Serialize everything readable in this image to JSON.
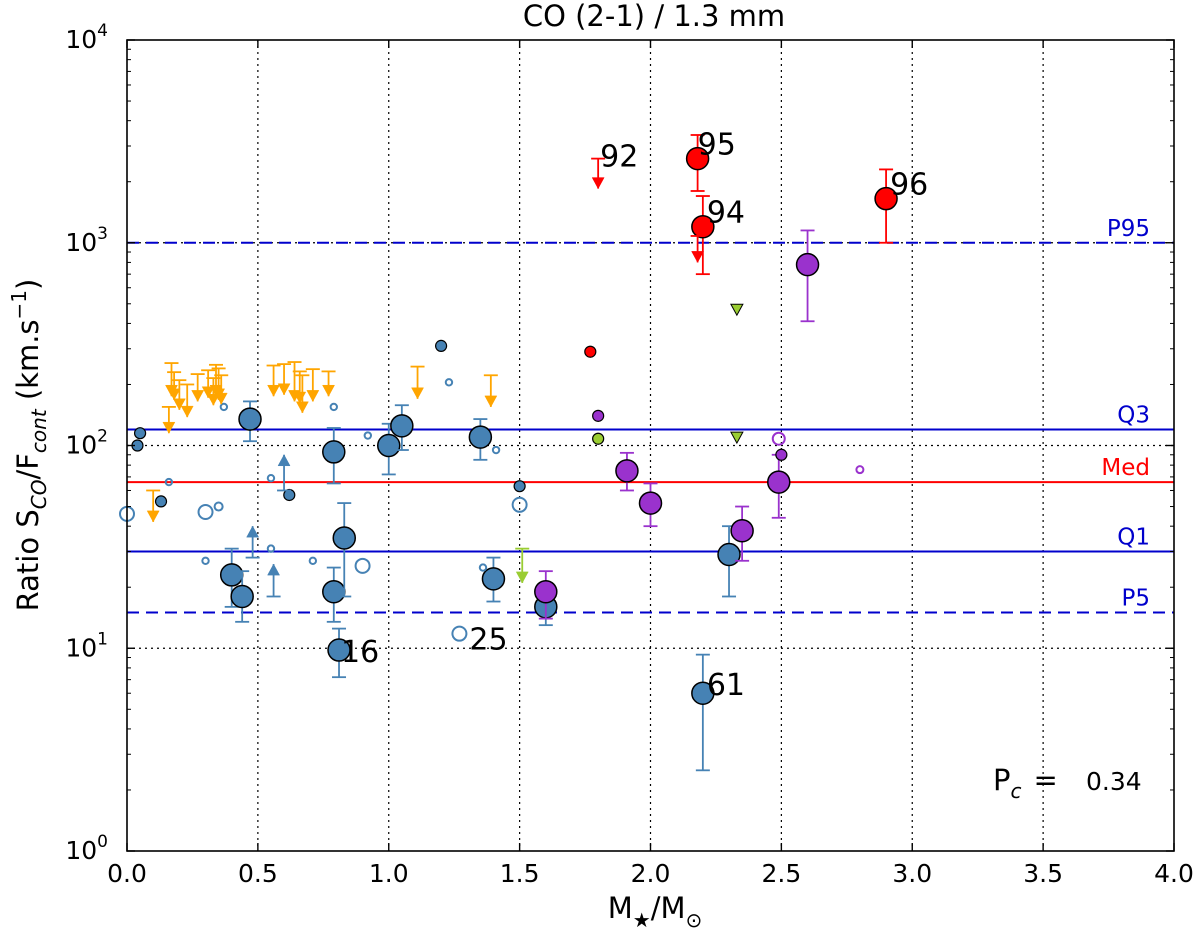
{
  "chart_data": {
    "type": "scatter",
    "title": "CO (2-1) / 1.3 mm",
    "xlabel": "M★/M⊙",
    "ylabel": "Ratio S_CO/F_cont (km.s^-1)",
    "xlim": [
      0.0,
      4.0
    ],
    "ylim": [
      1,
      10000
    ],
    "yscale": "log",
    "grid": true,
    "xticks": [
      {
        "value": 0.0,
        "label": "0.0"
      },
      {
        "value": 0.5,
        "label": "0.5"
      },
      {
        "value": 1.0,
        "label": "1.0"
      },
      {
        "value": 1.5,
        "label": "1.5"
      },
      {
        "value": 2.0,
        "label": "2.0"
      },
      {
        "value": 2.5,
        "label": "2.5"
      },
      {
        "value": 3.0,
        "label": "3.0"
      },
      {
        "value": 3.5,
        "label": "3.5"
      },
      {
        "value": 4.0,
        "label": "4.0"
      }
    ],
    "yticks": [
      {
        "value": 1,
        "exp": "0"
      },
      {
        "value": 10,
        "exp": "1"
      },
      {
        "value": 100,
        "exp": "2"
      },
      {
        "value": 1000,
        "exp": "3"
      },
      {
        "value": 10000,
        "exp": "4"
      }
    ],
    "colors": {
      "steel": "#4682b4",
      "purple": "#9a32cd",
      "red": "#ff0000",
      "orange": "#ffa500",
      "yellowgreen": "#9acd32",
      "blue": "#0000cc",
      "medline": "#ff0000"
    },
    "reference_lines": [
      {
        "name": "P95",
        "value": 1000,
        "style": "dashed",
        "color": "#0000cc"
      },
      {
        "name": "Q3",
        "value": 120,
        "style": "solid",
        "color": "#0000cc"
      },
      {
        "name": "Med",
        "value": 66,
        "style": "solid",
        "color": "#ff0000"
      },
      {
        "name": "Q1",
        "value": 30,
        "style": "solid",
        "color": "#0000cc"
      },
      {
        "name": "P5",
        "value": 15,
        "style": "dashed",
        "color": "#0000cc"
      }
    ],
    "annotation": {
      "text_main": "P",
      "text_sub": "c",
      "text_eq": "=",
      "value": "0.34"
    },
    "series": [
      {
        "name": "detections_steelblue",
        "color": "steel",
        "marker": "circle-large",
        "points": [
          {
            "x": 0.47,
            "y": 135,
            "ylo": 105,
            "yhi": 165
          },
          {
            "x": 0.4,
            "y": 23,
            "ylo": 16,
            "yhi": 31
          },
          {
            "x": 0.44,
            "y": 18,
            "ylo": 13.5,
            "yhi": 24
          },
          {
            "x": 0.79,
            "y": 93,
            "ylo": 65,
            "yhi": 122
          },
          {
            "x": 0.79,
            "y": 19,
            "ylo": 13.5,
            "yhi": 25
          },
          {
            "x": 0.83,
            "y": 35,
            "ylo": 18,
            "yhi": 52
          },
          {
            "x": 0.81,
            "y": 9.8,
            "ylo": 7.2,
            "yhi": 12.5,
            "label": "16"
          },
          {
            "x": 1.0,
            "y": 100,
            "ylo": 72,
            "yhi": 128
          },
          {
            "x": 1.05,
            "y": 125,
            "ylo": 95,
            "yhi": 158
          },
          {
            "x": 1.35,
            "y": 110,
            "ylo": 85,
            "yhi": 135
          },
          {
            "x": 1.4,
            "y": 22,
            "ylo": 17,
            "yhi": 28
          },
          {
            "x": 1.6,
            "y": 16,
            "ylo": 13,
            "yhi": 19
          },
          {
            "x": 2.3,
            "y": 29,
            "ylo": 18,
            "yhi": 40
          },
          {
            "x": 2.2,
            "y": 6,
            "ylo": 2.5,
            "yhi": 9.3,
            "label": "61"
          }
        ]
      },
      {
        "name": "detections_steelblue_small",
        "color": "steel",
        "marker": "circle-small",
        "points": [
          {
            "x": 0.05,
            "y": 115
          },
          {
            "x": 0.04,
            "y": 100
          },
          {
            "x": 0.13,
            "y": 53
          },
          {
            "x": 0.62,
            "y": 57
          },
          {
            "x": 1.2,
            "y": 310
          },
          {
            "x": 1.5,
            "y": 63
          }
        ]
      },
      {
        "name": "non_detections_open",
        "color": "steel",
        "marker": "circle-open",
        "points": [
          {
            "x": 0.0,
            "y": 46,
            "size": "large"
          },
          {
            "x": 0.3,
            "y": 47,
            "size": "large"
          },
          {
            "x": 0.35,
            "y": 50,
            "size": "small"
          },
          {
            "x": 0.16,
            "y": 66,
            "size": "tiny"
          },
          {
            "x": 0.3,
            "y": 27,
            "size": "tiny"
          },
          {
            "x": 0.55,
            "y": 69,
            "size": "tiny"
          },
          {
            "x": 0.55,
            "y": 31,
            "size": "tiny"
          },
          {
            "x": 0.71,
            "y": 27,
            "size": "tiny"
          },
          {
            "x": 0.79,
            "y": 155,
            "size": "tiny"
          },
          {
            "x": 0.92,
            "y": 112,
            "size": "tiny"
          },
          {
            "x": 0.37,
            "y": 155,
            "size": "tiny"
          },
          {
            "x": 0.9,
            "y": 25.5,
            "size": "large"
          },
          {
            "x": 1.23,
            "y": 205,
            "size": "tiny"
          },
          {
            "x": 1.36,
            "y": 25,
            "size": "tiny"
          },
          {
            "x": 1.41,
            "y": 95,
            "size": "tiny"
          },
          {
            "x": 1.5,
            "y": 51,
            "size": "large"
          },
          {
            "x": 1.27,
            "y": 11.8,
            "size": "large",
            "label": "25"
          }
        ]
      },
      {
        "name": "lower_limits_steelblue",
        "color": "steel",
        "marker": "arrow-up",
        "points": [
          {
            "x": 0.6,
            "y": 60,
            "yto": 90
          },
          {
            "x": 0.48,
            "y": 28,
            "yto": 40
          },
          {
            "x": 0.56,
            "y": 18,
            "yto": 26
          }
        ]
      },
      {
        "name": "upper_limits_orange",
        "color": "orange",
        "marker": "arrow-down",
        "points": [
          {
            "x": 0.17,
            "y": 255,
            "yto": 175
          },
          {
            "x": 0.16,
            "y": 155,
            "yto": 115
          },
          {
            "x": 0.2,
            "y": 210,
            "yto": 150
          },
          {
            "x": 0.18,
            "y": 230,
            "yto": 168
          },
          {
            "x": 0.23,
            "y": 200,
            "yto": 138
          },
          {
            "x": 0.27,
            "y": 225,
            "yto": 165
          },
          {
            "x": 0.31,
            "y": 235,
            "yto": 172
          },
          {
            "x": 0.34,
            "y": 250,
            "yto": 175
          },
          {
            "x": 0.35,
            "y": 240,
            "yto": 168
          },
          {
            "x": 0.36,
            "y": 222,
            "yto": 160
          },
          {
            "x": 0.33,
            "y": 215,
            "yto": 158
          },
          {
            "x": 0.1,
            "y": 60,
            "yto": 42
          },
          {
            "x": 0.56,
            "y": 248,
            "yto": 175
          },
          {
            "x": 0.6,
            "y": 252,
            "yto": 178
          },
          {
            "x": 0.64,
            "y": 258,
            "yto": 165
          },
          {
            "x": 0.66,
            "y": 232,
            "yto": 162
          },
          {
            "x": 0.67,
            "y": 222,
            "yto": 145
          },
          {
            "x": 0.71,
            "y": 238,
            "yto": 165
          },
          {
            "x": 0.77,
            "y": 232,
            "yto": 175
          },
          {
            "x": 1.11,
            "y": 245,
            "yto": 170
          },
          {
            "x": 1.39,
            "y": 222,
            "yto": 155
          }
        ]
      },
      {
        "name": "purple_detections",
        "color": "purple",
        "marker": "circle-large",
        "points": [
          {
            "x": 2.6,
            "y": 780,
            "ylo": 410,
            "yhi": 1150
          },
          {
            "x": 1.91,
            "y": 75,
            "ylo": 60,
            "yhi": 92
          },
          {
            "x": 2.0,
            "y": 52,
            "ylo": 40,
            "yhi": 65
          },
          {
            "x": 2.35,
            "y": 38,
            "ylo": 27,
            "yhi": 50
          },
          {
            "x": 2.49,
            "y": 66,
            "ylo": 44,
            "yhi": 90
          },
          {
            "x": 1.6,
            "y": 19,
            "ylo": 14,
            "yhi": 24
          }
        ]
      },
      {
        "name": "purple_small",
        "color": "purple",
        "marker": "circle-small",
        "points": [
          {
            "x": 1.8,
            "y": 140
          },
          {
            "x": 2.5,
            "y": 90
          },
          {
            "x": 2.49,
            "y": 108,
            "open": true
          },
          {
            "x": 2.8,
            "y": 76,
            "open": true,
            "tiny": true
          }
        ]
      },
      {
        "name": "red_detections",
        "color": "red",
        "marker": "circle-large",
        "points": [
          {
            "x": 2.18,
            "y": 2600,
            "ylo": 1800,
            "yhi": 3400,
            "label": "95"
          },
          {
            "x": 2.2,
            "y": 1200,
            "ylo": 700,
            "yhi": 1700,
            "label": "94"
          },
          {
            "x": 2.9,
            "y": 1650,
            "ylo": 1000,
            "yhi": 2300,
            "label": "96"
          }
        ]
      },
      {
        "name": "red_small",
        "color": "red",
        "marker": "circle-small",
        "points": [
          {
            "x": 1.77,
            "y": 290
          }
        ]
      },
      {
        "name": "red_upper_limits",
        "color": "red",
        "marker": "arrow-down",
        "points": [
          {
            "x": 1.8,
            "y": 2600,
            "yto": 1850,
            "label": "92"
          },
          {
            "x": 2.18,
            "y": 1080,
            "yto": 800
          }
        ]
      },
      {
        "name": "yellowgreen_points",
        "color": "yellowgreen",
        "marker": "mixed",
        "points": [
          {
            "x": 1.8,
            "y": 108,
            "shape": "circle"
          },
          {
            "x": 2.33,
            "y": 470,
            "shape": "triangle"
          },
          {
            "x": 2.33,
            "y": 110,
            "shape": "triangle"
          },
          {
            "x": 1.51,
            "y": 31,
            "yto": 21,
            "shape": "arrow"
          }
        ]
      }
    ]
  }
}
